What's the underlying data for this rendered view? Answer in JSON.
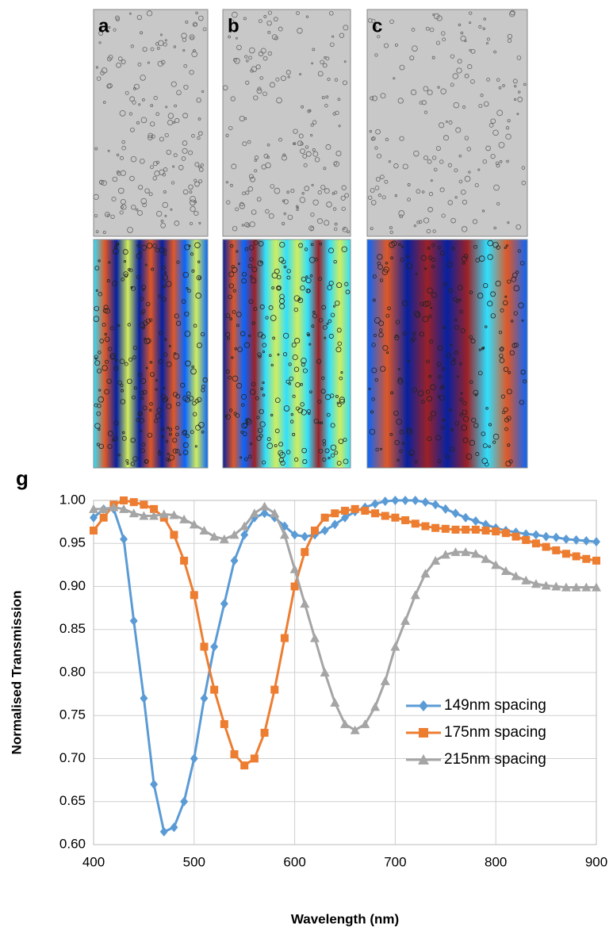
{
  "figure": {
    "panel_labels": [
      "a",
      "b",
      "c"
    ]
  },
  "chart_data": {
    "type": "line",
    "panel_label": "g",
    "x_label": "Wavelength (nm)",
    "y_label": "Normalised Transmission",
    "x": [
      400,
      410,
      420,
      430,
      440,
      450,
      460,
      470,
      480,
      490,
      500,
      510,
      520,
      530,
      540,
      550,
      560,
      570,
      580,
      590,
      600,
      610,
      620,
      630,
      640,
      650,
      660,
      670,
      680,
      690,
      700,
      710,
      720,
      730,
      740,
      750,
      760,
      770,
      780,
      790,
      800,
      810,
      820,
      830,
      840,
      850,
      860,
      870,
      880,
      890,
      900
    ],
    "series": [
      {
        "name": "149nm spacing",
        "color": "#5b9bd5",
        "marker": "diamond",
        "values": [
          0.98,
          0.99,
          0.99,
          0.955,
          0.86,
          0.77,
          0.67,
          0.615,
          0.62,
          0.65,
          0.7,
          0.77,
          0.83,
          0.88,
          0.93,
          0.96,
          0.98,
          0.985,
          0.98,
          0.97,
          0.96,
          0.958,
          0.96,
          0.965,
          0.972,
          0.98,
          0.987,
          0.992,
          0.996,
          0.999,
          1.0,
          1.0,
          1.0,
          0.998,
          0.995,
          0.99,
          0.985,
          0.98,
          0.976,
          0.972,
          0.968,
          0.965,
          0.963,
          0.961,
          0.96,
          0.958,
          0.957,
          0.955,
          0.954,
          0.953,
          0.952
        ]
      },
      {
        "name": "175nm spacing",
        "color": "#ed7d31",
        "marker": "square",
        "values": [
          0.965,
          0.98,
          0.995,
          1.0,
          0.998,
          0.995,
          0.99,
          0.98,
          0.96,
          0.93,
          0.89,
          0.83,
          0.78,
          0.74,
          0.705,
          0.692,
          0.7,
          0.73,
          0.78,
          0.84,
          0.9,
          0.94,
          0.965,
          0.98,
          0.985,
          0.988,
          0.99,
          0.988,
          0.985,
          0.982,
          0.98,
          0.977,
          0.973,
          0.97,
          0.968,
          0.967,
          0.966,
          0.966,
          0.966,
          0.965,
          0.964,
          0.962,
          0.958,
          0.954,
          0.95,
          0.946,
          0.942,
          0.938,
          0.935,
          0.932,
          0.93
        ]
      },
      {
        "name": "215nm spacing",
        "color": "#a5a5a5",
        "marker": "triangle",
        "values": [
          0.99,
          0.99,
          0.992,
          0.99,
          0.985,
          0.982,
          0.982,
          0.984,
          0.983,
          0.978,
          0.972,
          0.965,
          0.958,
          0.955,
          0.96,
          0.97,
          0.985,
          0.993,
          0.985,
          0.96,
          0.92,
          0.88,
          0.84,
          0.8,
          0.765,
          0.74,
          0.733,
          0.74,
          0.76,
          0.79,
          0.83,
          0.86,
          0.89,
          0.915,
          0.93,
          0.937,
          0.94,
          0.94,
          0.938,
          0.932,
          0.925,
          0.918,
          0.912,
          0.907,
          0.903,
          0.901,
          0.9,
          0.899,
          0.899,
          0.899,
          0.899
        ]
      }
    ],
    "xlim": [
      400,
      900
    ],
    "xticks": [
      400,
      500,
      600,
      700,
      800,
      900
    ],
    "ylim": [
      0.6,
      1.0
    ],
    "yticks": [
      {
        "value": 0.6,
        "label": "0.60"
      },
      {
        "value": 0.65,
        "label": "0.65"
      },
      {
        "value": 0.7,
        "label": "0.70"
      },
      {
        "value": 0.75,
        "label": "0.75"
      },
      {
        "value": 0.8,
        "label": "0.80"
      },
      {
        "value": 0.85,
        "label": "0.85"
      },
      {
        "value": 0.9,
        "label": "0.90"
      },
      {
        "value": 0.95,
        "label": "0.95"
      },
      {
        "value": 1.0,
        "label": "1.00"
      }
    ],
    "grid": true,
    "legend": "lower right"
  }
}
